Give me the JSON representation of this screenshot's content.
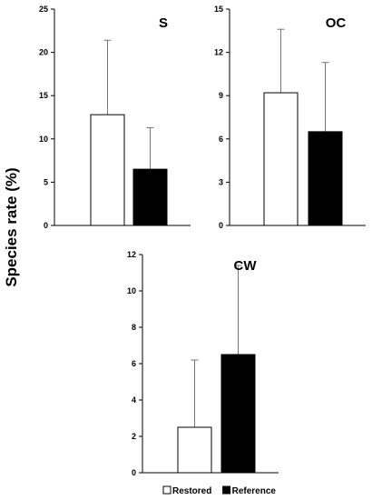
{
  "ylabel": "Species rate (%)",
  "legend": [
    {
      "name": "Restored",
      "color": "#ffffff"
    },
    {
      "name": "Reference",
      "color": "#000000"
    }
  ],
  "chart_data": [
    {
      "type": "bar",
      "title": "S",
      "categories": [
        "Restored",
        "Reference"
      ],
      "values": [
        12.8,
        6.5
      ],
      "errors": [
        8.6,
        4.8
      ],
      "ylim": [
        0,
        25
      ],
      "yticks": [
        0,
        5,
        10,
        15,
        20,
        25
      ],
      "colors": [
        "#ffffff",
        "#000000"
      ]
    },
    {
      "type": "bar",
      "title": "OC",
      "categories": [
        "Restored",
        "Reference"
      ],
      "values": [
        9.2,
        6.5
      ],
      "errors": [
        4.4,
        4.8
      ],
      "ylim": [
        0,
        15
      ],
      "yticks": [
        0,
        3,
        6,
        9,
        12,
        15
      ],
      "colors": [
        "#ffffff",
        "#000000"
      ]
    },
    {
      "type": "bar",
      "title": "CW",
      "categories": [
        "Restored",
        "Reference"
      ],
      "values": [
        2.5,
        6.5
      ],
      "errors": [
        3.7,
        4.9
      ],
      "ylim": [
        0,
        12
      ],
      "yticks": [
        0,
        2,
        4,
        6,
        8,
        10,
        12
      ],
      "colors": [
        "#ffffff",
        "#000000"
      ]
    }
  ]
}
